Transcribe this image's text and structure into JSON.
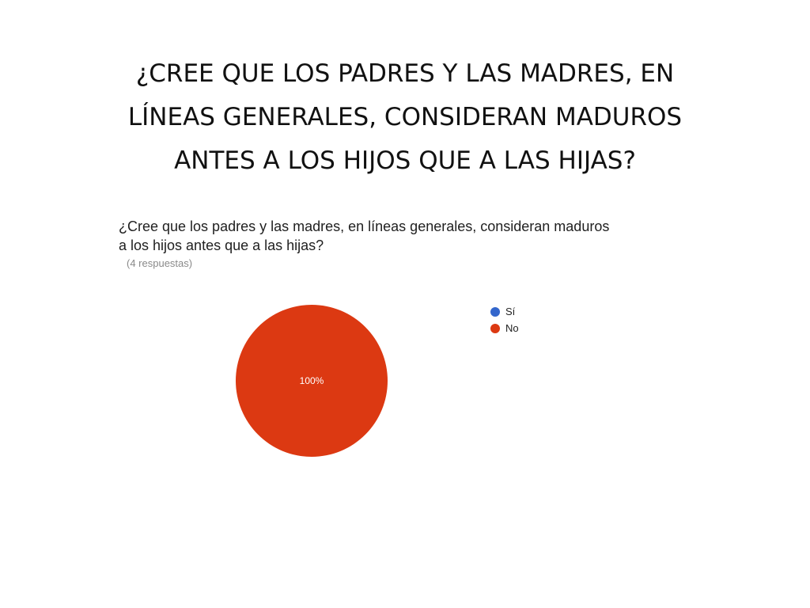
{
  "slide": {
    "title_lines": [
      "¿CREE QUE LOS PADRES Y LAS MADRES, EN",
      "LÍNEAS GENERALES, CONSIDERAN MADUROS",
      "ANTES A LOS HIJOS QUE A LAS HIJAS?"
    ]
  },
  "chart_data": {
    "type": "pie",
    "title_lines": [
      "¿Cree que los padres y las madres, en líneas generales, consideran maduros",
      "a los hijos antes que a las hijas?"
    ],
    "subtitle": "(4 respuestas)",
    "legend_placement": "right",
    "slices": [
      {
        "name": "Sí",
        "value": 0,
        "color": "#3366cc"
      },
      {
        "name": "No",
        "value": 4,
        "color": "#dc3912"
      }
    ],
    "slice_label": "100%"
  }
}
